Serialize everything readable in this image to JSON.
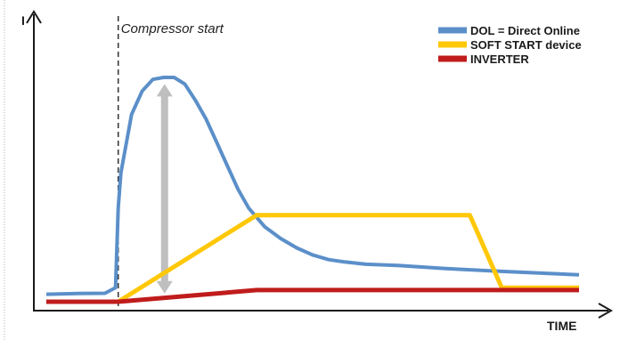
{
  "chart_data": {
    "type": "line",
    "title": "",
    "xlabel": "TIME",
    "ylabel": "I",
    "xlim": [
      0,
      100
    ],
    "ylim": [
      0,
      100
    ],
    "grid": false,
    "legend_position": "top-right",
    "annotation": {
      "label": "Compressor start",
      "x": 13.5
    },
    "peak_arrow": {
      "x": 22.2,
      "y_low": 3.5,
      "y_high": 93.0,
      "color": "#bfbfbf"
    },
    "series": [
      {
        "name": "DOL = Direct Online",
        "color": "#5b8fc9",
        "points": [
          [
            0,
            3.2
          ],
          [
            6,
            3.5
          ],
          [
            11,
            3.6
          ],
          [
            13,
            6
          ],
          [
            13.5,
            40
          ],
          [
            14,
            55
          ],
          [
            16,
            80
          ],
          [
            18,
            90
          ],
          [
            20,
            95
          ],
          [
            22,
            95.8
          ],
          [
            24,
            95.8
          ],
          [
            26,
            93
          ],
          [
            28,
            86
          ],
          [
            30,
            78
          ],
          [
            32,
            68
          ],
          [
            34,
            58
          ],
          [
            36,
            48
          ],
          [
            38,
            40
          ],
          [
            41,
            32
          ],
          [
            44,
            27
          ],
          [
            47,
            23
          ],
          [
            50,
            20
          ],
          [
            53,
            18
          ],
          [
            56,
            17
          ],
          [
            60,
            16
          ],
          [
            66,
            15.5
          ],
          [
            75,
            14.2
          ],
          [
            85,
            13
          ],
          [
            100,
            11.5
          ]
        ]
      },
      {
        "name": "SOFT START device",
        "color": "#ffc808",
        "points": [
          [
            0,
            0
          ],
          [
            13.5,
            0
          ],
          [
            39.5,
            37
          ],
          [
            79.5,
            37
          ],
          [
            85.5,
            6
          ],
          [
            100,
            6
          ]
        ]
      },
      {
        "name": "INVERTER",
        "color": "#c01c1c",
        "points": [
          [
            0,
            0
          ],
          [
            13.5,
            0
          ],
          [
            39.5,
            5
          ],
          [
            100,
            5
          ]
        ]
      }
    ]
  }
}
